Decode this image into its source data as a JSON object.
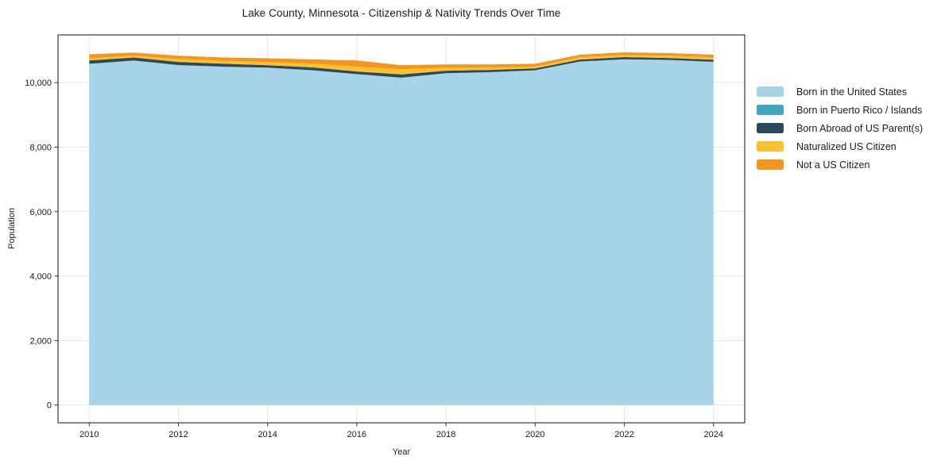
{
  "chart_data": {
    "type": "area",
    "stacked": true,
    "title": "Lake County, Minnesota - Citizenship & Nativity Trends Over Time",
    "xlabel": "Year",
    "ylabel": "Population",
    "x": [
      2010,
      2011,
      2012,
      2013,
      2014,
      2015,
      2016,
      2017,
      2018,
      2019,
      2020,
      2021,
      2022,
      2023,
      2024
    ],
    "series": [
      {
        "name": "Born in the United States",
        "color": "#a7d4e8",
        "values": [
          10580,
          10680,
          10540,
          10490,
          10460,
          10380,
          10260,
          10150,
          10290,
          10320,
          10380,
          10650,
          10720,
          10700,
          10640
        ]
      },
      {
        "name": "Born in Puerto Rico / Islands",
        "color": "#42a6c2",
        "values": [
          5,
          5,
          5,
          5,
          5,
          5,
          5,
          5,
          5,
          5,
          5,
          5,
          5,
          5,
          5
        ]
      },
      {
        "name": "Born Abroad of US Parent(s)",
        "color": "#29495c",
        "values": [
          100,
          95,
          95,
          95,
          75,
          90,
          80,
          100,
          75,
          70,
          55,
          60,
          65,
          60,
          65
        ]
      },
      {
        "name": "Naturalized US Citizen",
        "color": "#fcc22d",
        "values": [
          75,
          50,
          95,
          90,
          95,
          115,
          150,
          160,
          95,
          75,
          55,
          70,
          70,
          70,
          70
        ]
      },
      {
        "name": "Not a US Citizen",
        "color": "#f6941e",
        "values": [
          120,
          100,
          100,
          100,
          120,
          130,
          190,
          125,
          100,
          95,
          90,
          80,
          80,
          80,
          85
        ]
      }
    ],
    "xticks": [
      2010,
      2012,
      2014,
      2016,
      2018,
      2020,
      2022,
      2024
    ],
    "yticks": [
      0,
      2000,
      4000,
      6000,
      8000,
      10000
    ],
    "xlim": [
      2009.3,
      2024.7
    ],
    "ylim": [
      -550,
      11480
    ],
    "grid": true,
    "legend_position": "right",
    "colors": {
      "grid": "#e7e7e7",
      "frame": "#262626",
      "tick": "#333333",
      "text": "#1a1a1a"
    }
  }
}
